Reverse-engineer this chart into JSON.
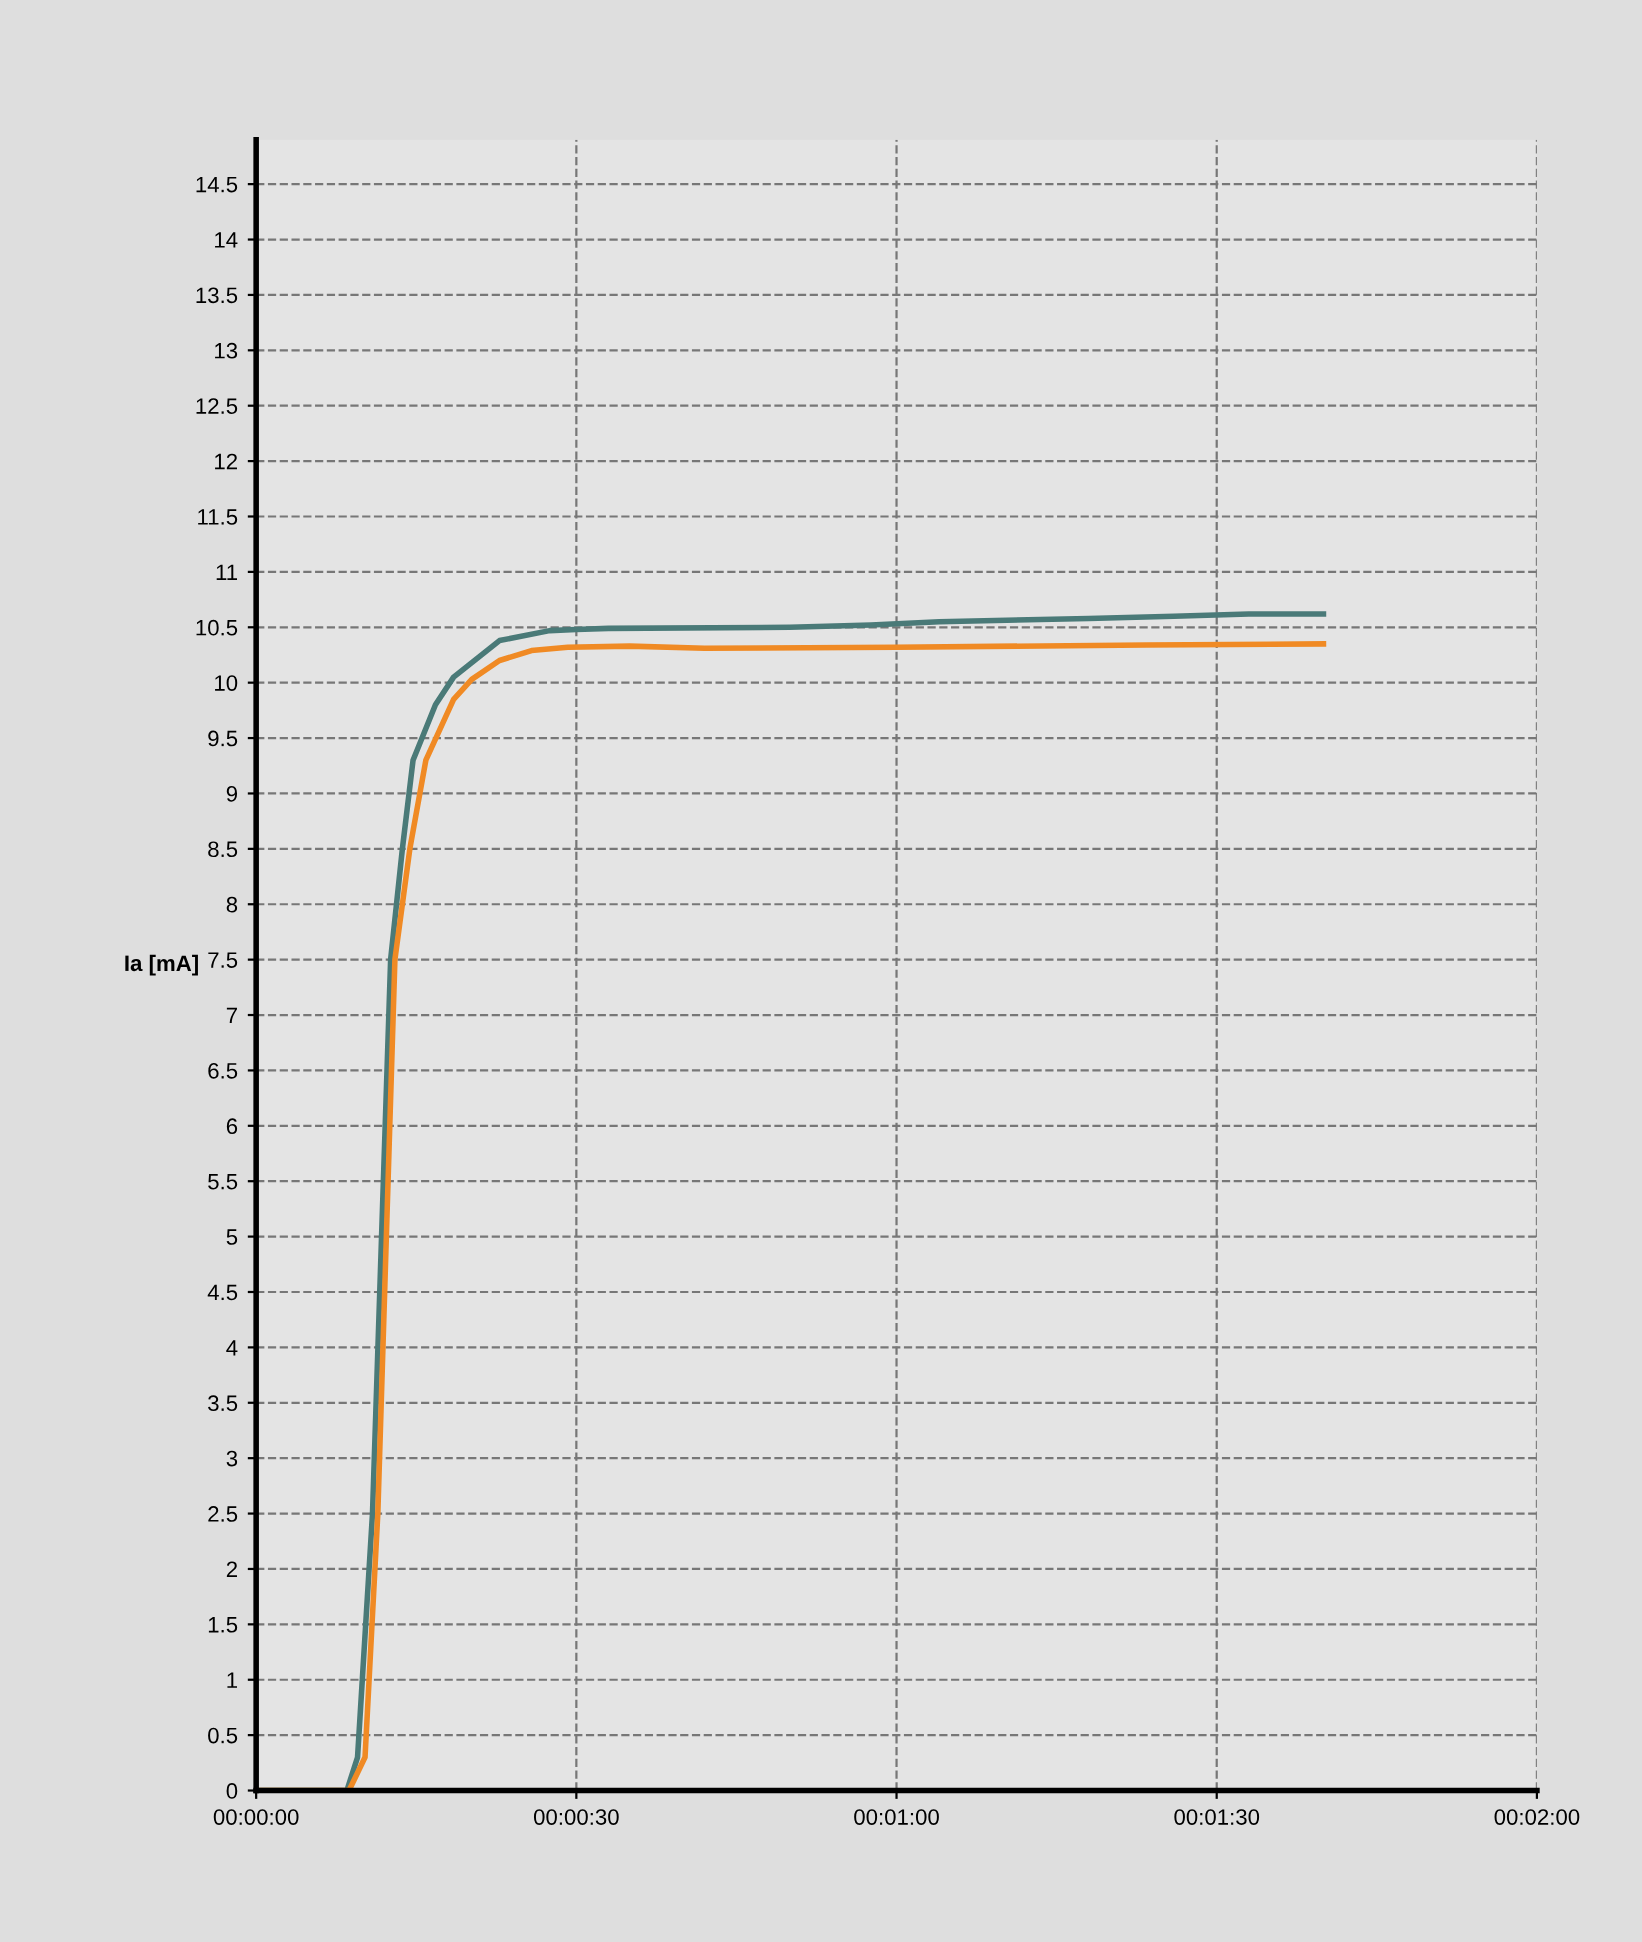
{
  "chart_data": {
    "type": "line",
    "ylabel": "Ia [mA]",
    "xlim": [
      0,
      120
    ],
    "ylim": [
      0,
      14.9
    ],
    "xticks": [
      {
        "value": 0,
        "label": "00:00:00"
      },
      {
        "value": 30,
        "label": "00:00:30"
      },
      {
        "value": 60,
        "label": "00:01:00"
      },
      {
        "value": 90,
        "label": "00:01:30"
      },
      {
        "value": 120,
        "label": "00:02:00"
      }
    ],
    "yticks": [
      0,
      0.5,
      1,
      1.5,
      2,
      2.5,
      3,
      3.5,
      4,
      4.5,
      5,
      5.5,
      6,
      6.5,
      7,
      7.5,
      8,
      8.5,
      9,
      9.5,
      10,
      10.5,
      11,
      11.5,
      12,
      12.5,
      13,
      13.5,
      14,
      14.5
    ],
    "grid": true,
    "line_style": "solid",
    "marker": "none",
    "series": [
      {
        "color": "#4a7a78",
        "x": [
          0,
          8.5,
          9.5,
          10.9,
          12.6,
          13.7,
          14.7,
          16.8,
          18.5,
          22.8,
          27.5,
          30,
          33,
          50,
          57.6,
          64,
          78,
          86,
          93,
          100
        ],
        "values": [
          0,
          0,
          0.3,
          2.5,
          7.5,
          8.5,
          9.3,
          9.8,
          10.05,
          10.38,
          10.47,
          10.48,
          10.49,
          10.5,
          10.52,
          10.55,
          10.58,
          10.6,
          10.62,
          10.62
        ]
      },
      {
        "color": "#f08a24",
        "x": [
          0,
          8.7,
          10.2,
          11.4,
          13.0,
          14.4,
          15.9,
          18.5,
          20.2,
          22.8,
          25.8,
          29.2,
          35,
          42,
          60,
          83.4,
          100
        ],
        "values": [
          0,
          0,
          0.3,
          2.5,
          7.5,
          8.5,
          9.3,
          9.85,
          10.03,
          10.2,
          10.29,
          10.32,
          10.33,
          10.31,
          10.32,
          10.34,
          10.35
        ]
      }
    ]
  }
}
